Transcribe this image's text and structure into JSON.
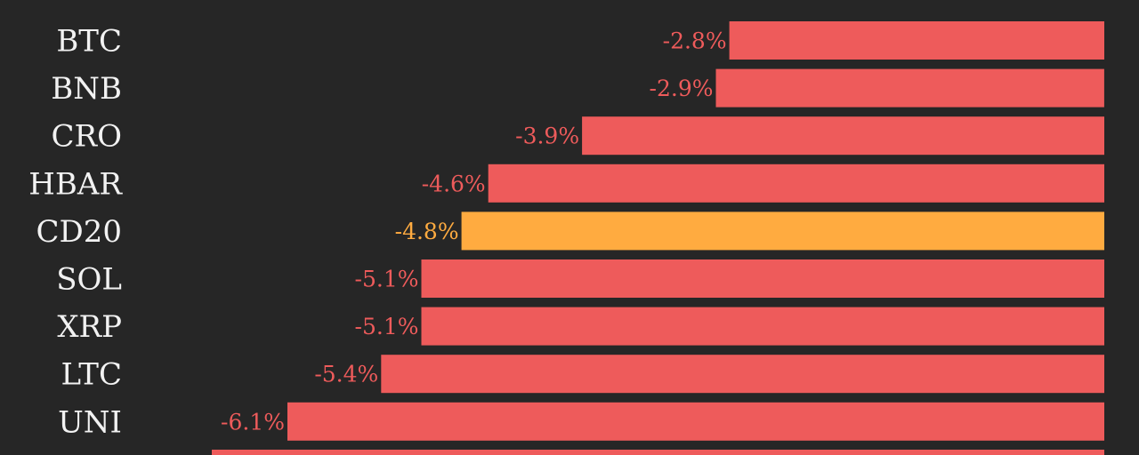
{
  "chart_data": {
    "type": "bar",
    "orientation": "horizontal",
    "title": "",
    "xlabel": "",
    "ylabel": "",
    "grid": false,
    "legend": "none",
    "categories": [
      "BTC",
      "BNB",
      "CRO",
      "HBAR",
      "CD20",
      "SOL",
      "XRP",
      "LTC",
      "UNI"
    ],
    "values": [
      -2.8,
      -2.9,
      -3.9,
      -4.6,
      -4.8,
      -5.1,
      -5.1,
      -5.4,
      -6.1
    ],
    "value_labels": [
      "-2.8%",
      "-2.9%",
      "-3.9%",
      "-4.6%",
      "-4.8%",
      "-5.1%",
      "-5.1%",
      "-5.4%",
      "-6.1%"
    ],
    "highlight_category": "CD20",
    "colors": {
      "background": "#262626",
      "bar": "#ee5b5b",
      "highlight_bar": "#ffab40",
      "category_text": "#f2f2f2",
      "value_text": "#ee5b5b",
      "highlight_value_text": "#ffab40"
    }
  }
}
